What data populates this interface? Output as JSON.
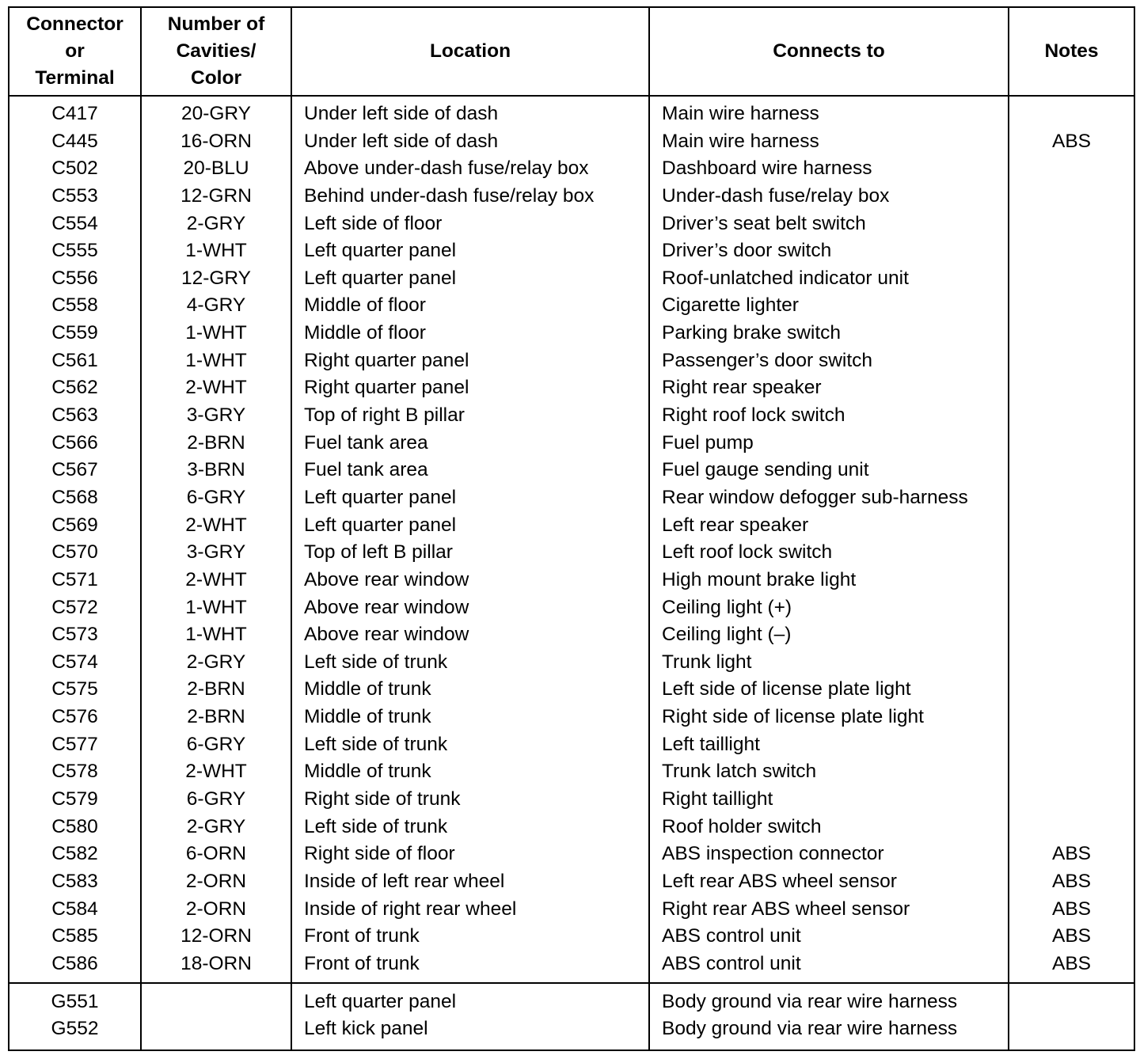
{
  "headers": [
    "Connector or Terminal",
    "Number of Cavities/ Color",
    "Location",
    "Connects to",
    "Notes"
  ],
  "header_lines": [
    [
      "Connector",
      "or",
      "Terminal"
    ],
    [
      "Number of",
      "Cavities/",
      "Color"
    ],
    [
      "Location"
    ],
    [
      "Connects to"
    ],
    [
      "Notes"
    ]
  ],
  "groups": [
    [
      [
        "C417",
        "20-GRY",
        "Under left side of dash",
        "Main wire harness",
        ""
      ],
      [
        "C445",
        "16-ORN",
        "Under left side of dash",
        "Main wire harness",
        "ABS"
      ],
      [
        "C502",
        "20-BLU",
        "Above under-dash fuse/relay box",
        "Dashboard wire harness",
        ""
      ],
      [
        "C553",
        "12-GRN",
        "Behind under-dash fuse/relay box",
        "Under-dash fuse/relay box",
        ""
      ],
      [
        "C554",
        "2-GRY",
        "Left side of floor",
        "Driver’s seat belt switch",
        ""
      ],
      [
        "C555",
        "1-WHT",
        "Left quarter panel",
        "Driver’s door switch",
        ""
      ],
      [
        "C556",
        "12-GRY",
        "Left quarter panel",
        "Roof-unlatched indicator unit",
        ""
      ],
      [
        "C558",
        "4-GRY",
        "Middle of floor",
        "Cigarette lighter",
        ""
      ],
      [
        "C559",
        "1-WHT",
        "Middle of floor",
        "Parking brake switch",
        ""
      ],
      [
        "C561",
        "1-WHT",
        "Right quarter panel",
        "Passenger’s door switch",
        ""
      ],
      [
        "C562",
        "2-WHT",
        "Right quarter panel",
        "Right rear speaker",
        ""
      ],
      [
        "C563",
        "3-GRY",
        "Top of right B pillar",
        "Right roof lock switch",
        ""
      ],
      [
        "C566",
        "2-BRN",
        "Fuel tank area",
        "Fuel pump",
        ""
      ],
      [
        "C567",
        "3-BRN",
        "Fuel tank area",
        "Fuel gauge sending unit",
        ""
      ],
      [
        "C568",
        "6-GRY",
        "Left quarter panel",
        "Rear window defogger sub-harness",
        ""
      ],
      [
        "C569",
        "2-WHT",
        "Left quarter panel",
        "Left rear speaker",
        ""
      ],
      [
        "C570",
        "3-GRY",
        "Top of left B pillar",
        "Left roof lock switch",
        ""
      ],
      [
        "C571",
        "2-WHT",
        "Above rear window",
        "High mount brake light",
        ""
      ],
      [
        "C572",
        "1-WHT",
        "Above rear window",
        "Ceiling light (+)",
        ""
      ],
      [
        "C573",
        "1-WHT",
        "Above rear window",
        "Ceiling light (–)",
        ""
      ],
      [
        "C574",
        "2-GRY",
        "Left side of trunk",
        "Trunk light",
        ""
      ],
      [
        "C575",
        "2-BRN",
        "Middle of trunk",
        "Left side of license plate light",
        ""
      ],
      [
        "C576",
        "2-BRN",
        "Middle of trunk",
        "Right side of license plate light",
        ""
      ],
      [
        "C577",
        "6-GRY",
        "Left side of trunk",
        "Left taillight",
        ""
      ],
      [
        "C578",
        "2-WHT",
        "Middle of trunk",
        "Trunk latch switch",
        ""
      ],
      [
        "C579",
        "6-GRY",
        "Right side of trunk",
        "Right taillight",
        ""
      ],
      [
        "C580",
        "2-GRY",
        "Left side of trunk",
        "Roof holder switch",
        ""
      ],
      [
        "C582",
        "6-ORN",
        "Right side of floor",
        "ABS inspection connector",
        "ABS"
      ],
      [
        "C583",
        "2-ORN",
        "Inside of left rear wheel",
        "Left rear ABS wheel sensor",
        "ABS"
      ],
      [
        "C584",
        "2-ORN",
        "Inside of right rear wheel",
        "Right rear ABS wheel sensor",
        "ABS"
      ],
      [
        "C585",
        "12-ORN",
        "Front of trunk",
        "ABS control unit",
        "ABS"
      ],
      [
        "C586",
        "18-ORN",
        "Front of trunk",
        "ABS control unit",
        "ABS"
      ]
    ],
    [
      [
        "G551",
        "",
        "Left quarter panel",
        "Body ground via rear wire harness",
        ""
      ],
      [
        "G552",
        "",
        "Left kick panel",
        "Body ground via rear wire harness",
        ""
      ]
    ]
  ]
}
